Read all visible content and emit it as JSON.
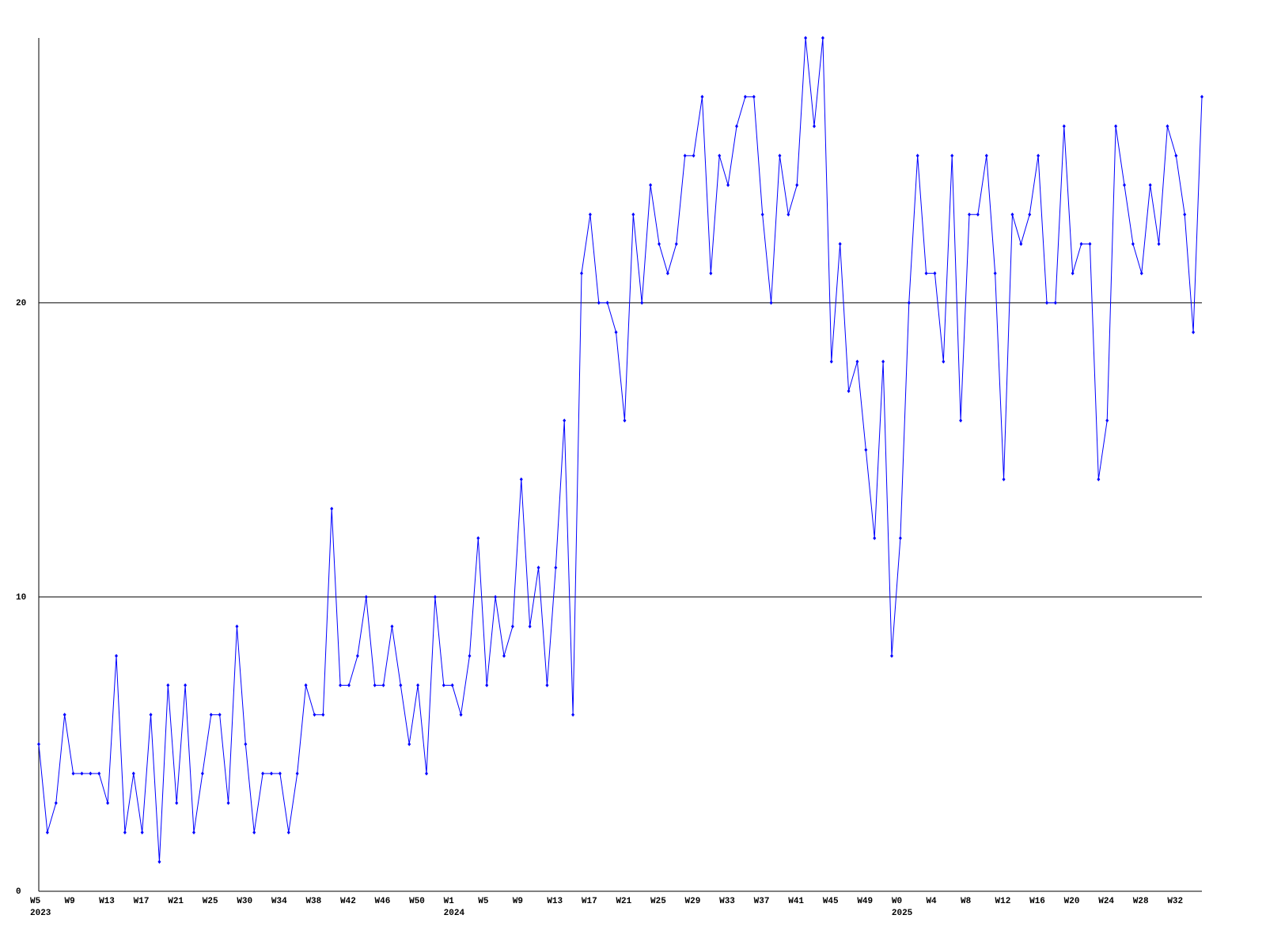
{
  "chart_data": {
    "type": "line",
    "color": "#0000ff",
    "categories": [
      "W5",
      null,
      null,
      null,
      "W9",
      null,
      null,
      null,
      "W13",
      null,
      null,
      null,
      "W17",
      null,
      null,
      null,
      "W21",
      null,
      null,
      null,
      "W25",
      null,
      null,
      null,
      "W30",
      null,
      null,
      null,
      "W34",
      null,
      null,
      null,
      "W38",
      null,
      null,
      null,
      "W42",
      null,
      null,
      null,
      "W46",
      null,
      null,
      null,
      "W50",
      null,
      null,
      null,
      "W1",
      null,
      null,
      null,
      "W5",
      null,
      null,
      null,
      "W9",
      null,
      null,
      null,
      "W13",
      null,
      null,
      null,
      "W17",
      null,
      null,
      null,
      "W21",
      null,
      null,
      null,
      "W25",
      null,
      null,
      null,
      "W29",
      null,
      null,
      null,
      "W33",
      null,
      null,
      null,
      "W37",
      null,
      null,
      null,
      "W41",
      null,
      null,
      null,
      "W45",
      null,
      null,
      null,
      "W49",
      null,
      null,
      null,
      "W0",
      null,
      null,
      null,
      "W4",
      null,
      null,
      null,
      "W8",
      null,
      null,
      null,
      "W12",
      null,
      null,
      null,
      "W16",
      null,
      null,
      null,
      "W20",
      null,
      null,
      null,
      "W24",
      null,
      null,
      null,
      "W28",
      null,
      null,
      null,
      "W32",
      null,
      null,
      null
    ],
    "category_years": [
      "2023",
      null,
      null,
      null,
      null,
      null,
      null,
      null,
      null,
      null,
      null,
      null,
      null,
      null,
      null,
      null,
      null,
      null,
      null,
      null,
      null,
      null,
      null,
      null,
      null,
      null,
      null,
      null,
      null,
      null,
      null,
      null,
      null,
      null,
      null,
      null,
      null,
      null,
      null,
      null,
      null,
      null,
      null,
      null,
      null,
      null,
      null,
      null,
      "2024",
      null,
      null,
      null,
      null,
      null,
      null,
      null,
      null,
      null,
      null,
      null,
      null,
      null,
      null,
      null,
      null,
      null,
      null,
      null,
      null,
      null,
      null,
      null,
      null,
      null,
      null,
      null,
      null,
      null,
      null,
      null,
      null,
      null,
      null,
      null,
      null,
      null,
      null,
      null,
      null,
      null,
      null,
      null,
      null,
      null,
      null,
      null,
      null,
      null,
      null,
      null,
      "2025",
      null,
      null,
      null,
      null,
      null,
      null,
      null,
      null,
      null,
      null,
      null,
      null,
      null,
      null,
      null,
      null,
      null,
      null,
      null,
      null,
      null,
      null,
      null,
      null,
      null,
      null,
      null,
      null,
      null,
      null,
      null,
      null,
      null,
      null,
      null
    ],
    "values": [
      5,
      2,
      3,
      6,
      4,
      4,
      4,
      4,
      3,
      8,
      2,
      4,
      2,
      6,
      1,
      7,
      3,
      7,
      2,
      4,
      6,
      6,
      3,
      9,
      5,
      2,
      4,
      4,
      4,
      2,
      4,
      7,
      6,
      6,
      13,
      7,
      7,
      8,
      10,
      7,
      7,
      9,
      7,
      5,
      7,
      4,
      10,
      7,
      7,
      6,
      8,
      12,
      7,
      10,
      8,
      9,
      14,
      9,
      11,
      7,
      11,
      16,
      6,
      21,
      23,
      20,
      20,
      19,
      16,
      23,
      20,
      24,
      22,
      21,
      22,
      25,
      25,
      27,
      21,
      25,
      24,
      26,
      27,
      27,
      23,
      20,
      25,
      23,
      24,
      29,
      26,
      29,
      18,
      22,
      17,
      18,
      15,
      12,
      18,
      8,
      12,
      20,
      25,
      21,
      21,
      18,
      25,
      16,
      23,
      23,
      25,
      21,
      14,
      23,
      22,
      23,
      25,
      20,
      20,
      26,
      21,
      22,
      22,
      14,
      16,
      26,
      24,
      22,
      21,
      24,
      22,
      26,
      25,
      23,
      19,
      27
    ],
    "ylim": [
      0,
      29
    ],
    "yticks": [
      0,
      10,
      20
    ],
    "grid": true
  }
}
